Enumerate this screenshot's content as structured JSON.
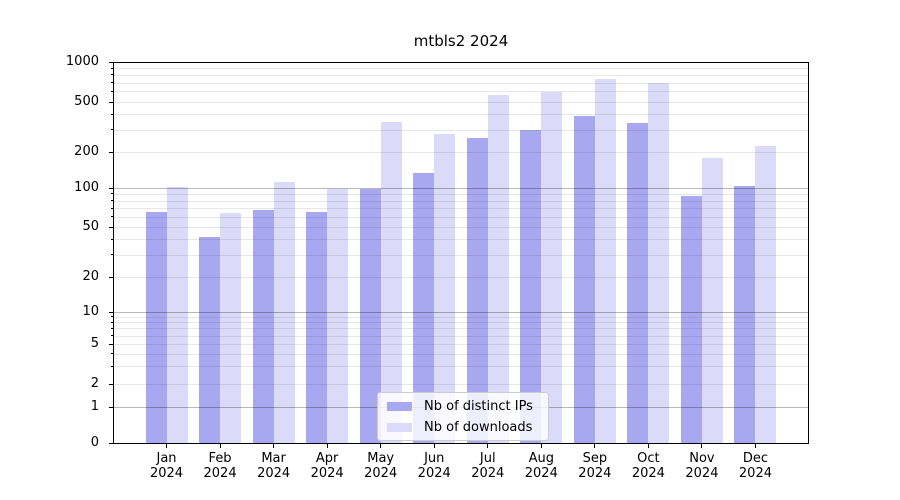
{
  "title": "mtbls2 2024",
  "chart_data": {
    "type": "bar",
    "title": "mtbls2 2024",
    "categories": [
      "Jan 2024",
      "Feb 2024",
      "Mar 2024",
      "Apr 2024",
      "May 2024",
      "Jun 2024",
      "Jul 2024",
      "Aug 2024",
      "Sep 2024",
      "Oct 2024",
      "Nov 2024",
      "Dec 2024"
    ],
    "series": [
      {
        "name": "Nb of distinct IPs",
        "color": "#a8a8f1",
        "values": [
          65,
          42,
          68,
          65,
          99,
          134,
          260,
          300,
          385,
          340,
          86,
          103
        ]
      },
      {
        "name": "Nb of downloads",
        "color": "#dbdbf9",
        "values": [
          102,
          64,
          112,
          99,
          348,
          280,
          560,
          590,
          750,
          700,
          178,
          222
        ]
      }
    ],
    "yscale": "symlog",
    "ylim": [
      0,
      1000
    ],
    "yticks": [
      0,
      1,
      2,
      5,
      10,
      20,
      50,
      100,
      200,
      500,
      1000
    ],
    "grid": true,
    "legend_position": "lower center"
  },
  "legend": {
    "items": [
      {
        "label": "Nb of distinct IPs",
        "color": "#a8a8f1"
      },
      {
        "label": "Nb of downloads",
        "color": "#dbdbf9"
      }
    ]
  },
  "colors": {
    "bar_dark": "#a8a8f1",
    "bar_light": "#dbdbf9",
    "grid_major": "rgba(0,0,0,0.28)",
    "grid_minor": "rgba(0,0,0,0.09)",
    "spine": "#000000",
    "background": "#ffffff"
  }
}
